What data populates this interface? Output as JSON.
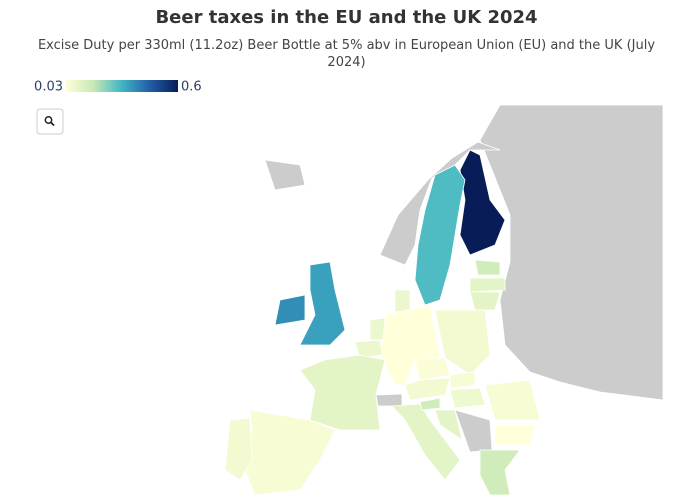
{
  "chart_data": {
    "type": "choropleth",
    "title": "Beer taxes in the EU and the UK 2024",
    "subtitle": "Excise Duty per 330ml (11.2oz) Beer Bottle at 5% abv in European Union (EU) and the UK (July 2024)",
    "colorscale": [
      "#ffffd9",
      "#c7e9b4",
      "#41b6c4",
      "#225ea8",
      "#081d58"
    ],
    "crange": [
      0.03,
      0.6
    ],
    "cticks": [
      0.03,
      0.6
    ],
    "values": [
      0.6,
      0.3,
      0.38,
      0.35,
      0.15,
      0.1,
      0.1,
      0.08,
      0.03,
      0.06,
      0.08,
      0.08,
      0.1,
      0.05,
      0.06,
      0.1,
      0.04,
      0.06,
      0.05,
      0.07,
      0.15,
      0.1,
      0.05,
      0.03,
      0.15
    ]
  }
}
